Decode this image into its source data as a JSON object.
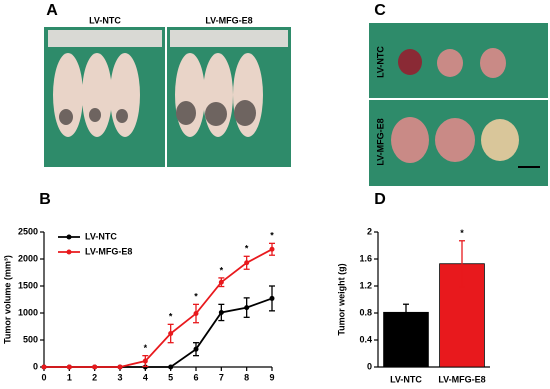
{
  "photos": {
    "A": {
      "letter": "A",
      "labels": [
        "LV-NTC",
        "LV-MFG-E8"
      ]
    },
    "C": {
      "letter": "C",
      "labels": [
        "LV-NTC",
        "LV-MFG-E8"
      ]
    }
  },
  "chart_data": [
    {
      "type": "line",
      "panel": "B",
      "ylabel": "Tumor volume (mm³)",
      "x": [
        0,
        1,
        2,
        3,
        4,
        5,
        6,
        7,
        8,
        9
      ],
      "xlim": [
        0,
        9
      ],
      "xticks": [
        0,
        1,
        2,
        3,
        4,
        5,
        6,
        7,
        8,
        9
      ],
      "ylim": [
        0,
        2500
      ],
      "yticks": [
        0,
        500,
        1000,
        1500,
        2000,
        2500
      ],
      "legend": "upper left",
      "series": [
        {
          "name": "LV-NTC",
          "color": "#000000",
          "values": [
            0,
            0,
            0,
            0,
            0,
            0,
            330,
            1010,
            1100,
            1270
          ],
          "errors": [
            0,
            0,
            0,
            0,
            0,
            0,
            120,
            150,
            180,
            230
          ]
        },
        {
          "name": "LV-MFG-E8",
          "color": "#e8191d",
          "values": [
            0,
            0,
            0,
            0,
            110,
            620,
            990,
            1570,
            1930,
            2180
          ],
          "errors": [
            0,
            0,
            0,
            0,
            100,
            170,
            170,
            80,
            120,
            110
          ]
        }
      ],
      "annotations": [
        {
          "x": 4,
          "text": "*"
        },
        {
          "x": 5,
          "text": "*"
        },
        {
          "x": 6,
          "text": "*"
        },
        {
          "x": 7,
          "text": "*"
        },
        {
          "x": 8,
          "text": "*"
        },
        {
          "x": 9,
          "text": "*"
        }
      ]
    },
    {
      "type": "bar",
      "panel": "D",
      "ylabel": "Tumor weight (g)",
      "categories": [
        "LV-NTC",
        "LV-MFG-E8"
      ],
      "values": [
        0.81,
        1.53
      ],
      "errors": [
        0.12,
        0.34
      ],
      "colors": [
        "#000000",
        "#e8191d"
      ],
      "ylim": [
        0,
        2
      ],
      "yticks": [
        0,
        0.4,
        0.8,
        1.2,
        1.6,
        2
      ],
      "annotations": [
        {
          "category": 1,
          "text": "*"
        }
      ]
    }
  ]
}
